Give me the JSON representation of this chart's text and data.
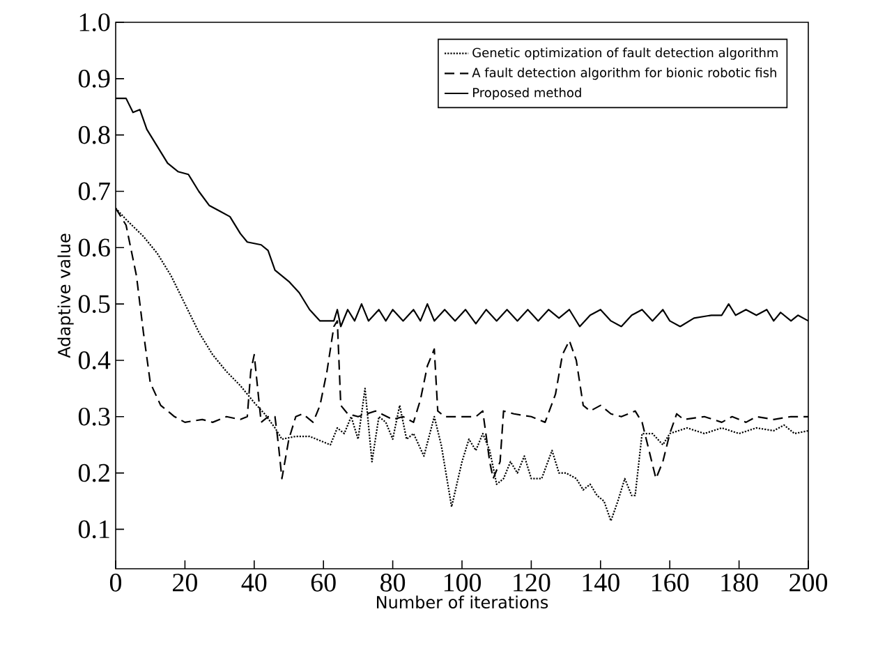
{
  "chart_data": {
    "type": "line",
    "xlabel": "Number of iterations",
    "ylabel": "Adaptive value",
    "xlim": [
      0,
      200
    ],
    "ylim": [
      0.03,
      1.0
    ],
    "xticks": [
      0,
      20,
      40,
      60,
      80,
      100,
      120,
      140,
      160,
      180,
      200
    ],
    "yticks": [
      0.1,
      0.2,
      0.3,
      0.4,
      0.5,
      0.6,
      0.7,
      0.8,
      0.9,
      {
        "value": 1.0,
        "label": "1.0"
      }
    ],
    "legend": "top right",
    "series": [
      {
        "name": "Genetic optimization of fault detection algorithm",
        "color": "#000000",
        "line_style": "dotted",
        "x": [
          0,
          3,
          8,
          12,
          16,
          20,
          24,
          28,
          32,
          36,
          40,
          43,
          46,
          48,
          52,
          56,
          60,
          62,
          64,
          66,
          68,
          70,
          72,
          74,
          76,
          78,
          80,
          82,
          84,
          86,
          89,
          92,
          94,
          97,
          100,
          102,
          104,
          106,
          108,
          110,
          112,
          114,
          116,
          118,
          120,
          123,
          126,
          128,
          130,
          133,
          135,
          137,
          139,
          141,
          143,
          145,
          147,
          149,
          150,
          152,
          155,
          158,
          160,
          165,
          170,
          175,
          180,
          185,
          190,
          193,
          196,
          200
        ],
        "values": [
          0.67,
          0.65,
          0.62,
          0.59,
          0.55,
          0.5,
          0.45,
          0.41,
          0.38,
          0.355,
          0.325,
          0.305,
          0.28,
          0.26,
          0.265,
          0.265,
          0.255,
          0.25,
          0.28,
          0.27,
          0.3,
          0.26,
          0.35,
          0.22,
          0.3,
          0.29,
          0.26,
          0.32,
          0.26,
          0.27,
          0.23,
          0.3,
          0.25,
          0.14,
          0.22,
          0.26,
          0.24,
          0.27,
          0.24,
          0.18,
          0.19,
          0.22,
          0.2,
          0.23,
          0.19,
          0.19,
          0.24,
          0.2,
          0.2,
          0.19,
          0.17,
          0.18,
          0.16,
          0.15,
          0.115,
          0.15,
          0.19,
          0.16,
          0.16,
          0.27,
          0.27,
          0.25,
          0.27,
          0.28,
          0.27,
          0.28,
          0.27,
          0.28,
          0.275,
          0.285,
          0.27,
          0.275
        ]
      },
      {
        "name": "A fault detection algorithm for bionic robotic fish",
        "color": "#000000",
        "line_style": "dashed",
        "x": [
          0,
          3,
          6,
          8,
          10,
          13,
          17,
          20,
          25,
          28,
          32,
          36,
          38,
          39,
          40,
          41,
          42,
          44,
          46,
          47,
          48,
          50,
          52,
          54,
          57,
          59,
          61,
          63,
          64,
          65,
          67,
          70,
          75,
          80,
          83,
          86,
          88,
          90,
          92,
          93,
          95,
          100,
          104,
          106,
          108,
          109,
          111,
          112,
          115,
          120,
          124,
          127,
          129,
          131,
          133,
          135,
          137,
          140,
          143,
          146,
          150,
          152,
          154,
          156,
          158,
          160,
          162,
          164,
          170,
          175,
          178,
          182,
          185,
          190,
          195,
          200
        ],
        "values": [
          0.67,
          0.64,
          0.55,
          0.45,
          0.36,
          0.32,
          0.3,
          0.29,
          0.295,
          0.29,
          0.3,
          0.295,
          0.3,
          0.38,
          0.41,
          0.35,
          0.29,
          0.3,
          0.3,
          0.25,
          0.19,
          0.26,
          0.3,
          0.305,
          0.29,
          0.32,
          0.38,
          0.46,
          0.47,
          0.32,
          0.305,
          0.3,
          0.31,
          0.295,
          0.3,
          0.29,
          0.33,
          0.39,
          0.42,
          0.31,
          0.3,
          0.3,
          0.3,
          0.31,
          0.22,
          0.19,
          0.22,
          0.31,
          0.305,
          0.3,
          0.29,
          0.34,
          0.41,
          0.435,
          0.4,
          0.32,
          0.31,
          0.32,
          0.305,
          0.3,
          0.31,
          0.29,
          0.24,
          0.19,
          0.22,
          0.27,
          0.305,
          0.295,
          0.3,
          0.29,
          0.3,
          0.29,
          0.3,
          0.295,
          0.3,
          0.3
        ]
      },
      {
        "name": "Proposed method",
        "color": "#000000",
        "line_style": "solid",
        "x": [
          0,
          3,
          5,
          7,
          9,
          12,
          15,
          18,
          21,
          24,
          27,
          30,
          33,
          36,
          38,
          42,
          44,
          46,
          50,
          53,
          56,
          59,
          63,
          64,
          65,
          67,
          69,
          71,
          73,
          76,
          78,
          80,
          83,
          86,
          88,
          90,
          92,
          95,
          98,
          101,
          104,
          107,
          110,
          113,
          116,
          119,
          122,
          125,
          128,
          131,
          134,
          137,
          140,
          143,
          146,
          149,
          152,
          155,
          158,
          160,
          163,
          167,
          172,
          175,
          177,
          179,
          182,
          185,
          188,
          190,
          192,
          195,
          197,
          200
        ],
        "values": [
          0.865,
          0.865,
          0.84,
          0.845,
          0.81,
          0.78,
          0.75,
          0.735,
          0.73,
          0.7,
          0.675,
          0.665,
          0.655,
          0.625,
          0.61,
          0.605,
          0.595,
          0.56,
          0.54,
          0.52,
          0.49,
          0.47,
          0.47,
          0.49,
          0.46,
          0.49,
          0.47,
          0.5,
          0.47,
          0.49,
          0.47,
          0.49,
          0.47,
          0.49,
          0.47,
          0.5,
          0.47,
          0.49,
          0.47,
          0.49,
          0.465,
          0.49,
          0.47,
          0.49,
          0.47,
          0.49,
          0.47,
          0.49,
          0.475,
          0.49,
          0.46,
          0.48,
          0.49,
          0.47,
          0.46,
          0.48,
          0.49,
          0.47,
          0.49,
          0.47,
          0.46,
          0.475,
          0.48,
          0.48,
          0.5,
          0.48,
          0.49,
          0.48,
          0.49,
          0.47,
          0.485,
          0.47,
          0.48,
          0.47
        ]
      }
    ]
  }
}
